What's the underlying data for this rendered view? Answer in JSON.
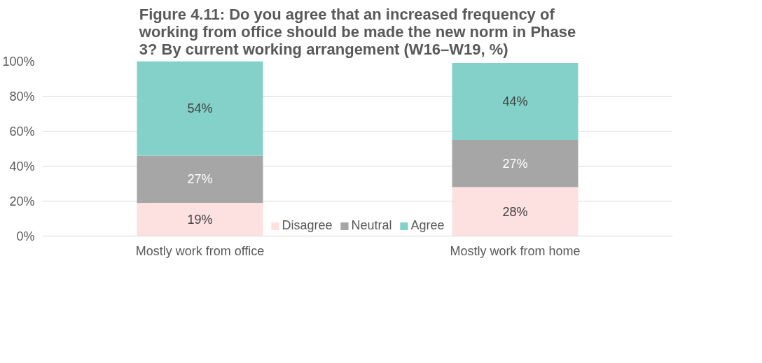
{
  "chart_data": {
    "type": "bar",
    "stacked": true,
    "title": "Figure 4.11: Do you agree that an increased frequency of working from office should be made the new norm in Phase 3? By current working arrangement (W16–W19, %)",
    "categories": [
      "Mostly work from office",
      "Mostly work from home"
    ],
    "series": [
      {
        "name": "Disagree",
        "color": "#fde0e0",
        "values": [
          19,
          28
        ],
        "value_labels": [
          "19%",
          "28%"
        ]
      },
      {
        "name": "Neutral",
        "color": "#a6a6a6",
        "values": [
          27,
          27
        ],
        "value_labels": [
          "27%",
          "27%"
        ]
      },
      {
        "name": "Agree",
        "color": "#83d1c8",
        "values": [
          54,
          44
        ],
        "value_labels": [
          "54%",
          "44%"
        ]
      }
    ],
    "ylim": [
      0,
      100
    ],
    "yticks": [
      {
        "value": 0,
        "label": "0%"
      },
      {
        "value": 20,
        "label": "20%"
      },
      {
        "value": 40,
        "label": "40%"
      },
      {
        "value": 60,
        "label": "60%"
      },
      {
        "value": 80,
        "label": "80%"
      },
      {
        "value": 100,
        "label": "100%"
      }
    ],
    "grid": "y",
    "legend": "bottom"
  }
}
